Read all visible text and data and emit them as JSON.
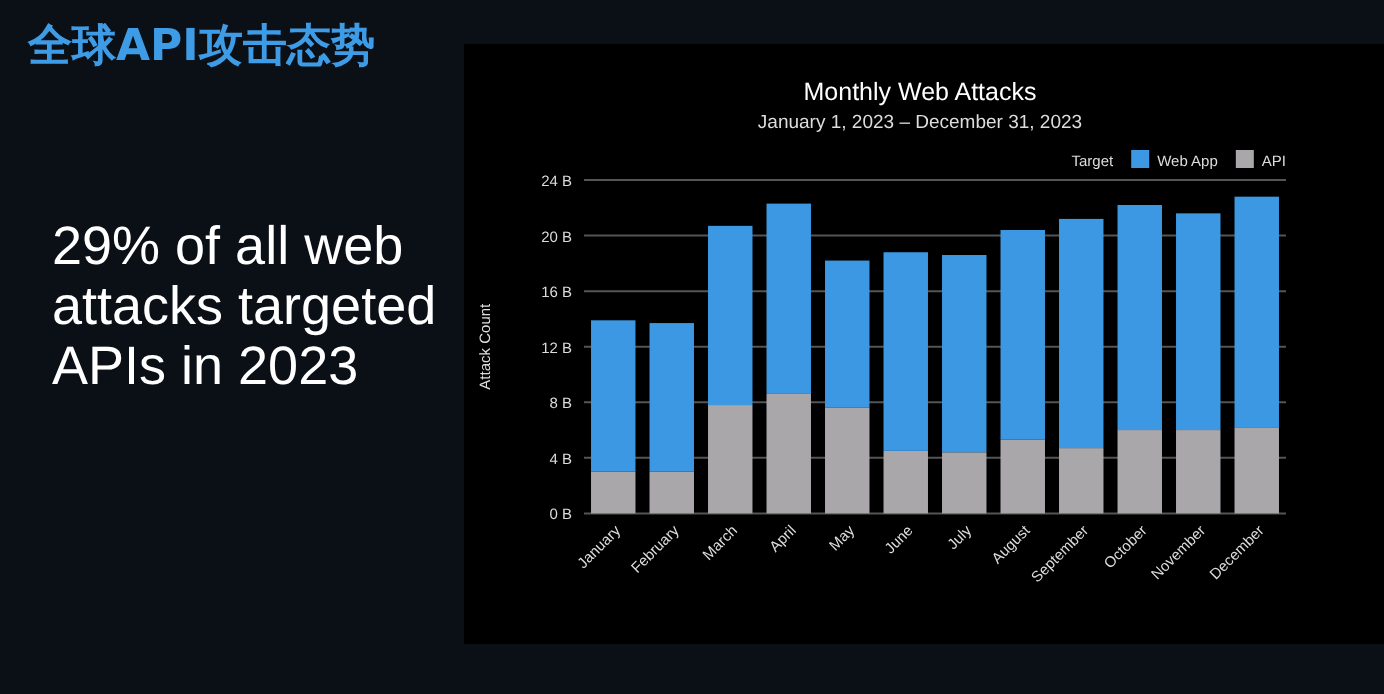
{
  "chart_data": {
    "type": "bar",
    "title": "Monthly Web Attacks",
    "subtitle": "January 1, 2023 – December 31, 2023",
    "ylabel": "Attack Count",
    "legend_title": "Target",
    "annotations": [
      "全球API攻击态势",
      "29% of all web attacks targeted APIs in 2023"
    ],
    "categories": [
      "January",
      "February",
      "March",
      "April",
      "May",
      "June",
      "July",
      "August",
      "September",
      "October",
      "November",
      "December"
    ],
    "stacked": true,
    "series": [
      {
        "name": "API",
        "color": "#a9a7aa",
        "values": [
          3.0,
          3.0,
          7.8,
          8.6,
          7.6,
          4.5,
          4.4,
          5.3,
          4.7,
          6.0,
          6.0,
          6.2
        ]
      },
      {
        "name": "Web App",
        "color": "#3c98e2",
        "values": [
          10.9,
          10.7,
          12.9,
          13.7,
          10.6,
          14.3,
          14.2,
          15.1,
          16.5,
          16.2,
          15.6,
          16.6
        ]
      }
    ],
    "ylim": [
      0,
      24
    ],
    "yticks": [
      {
        "value": 0,
        "label": "0 B"
      },
      {
        "value": 4,
        "label": "4 B"
      },
      {
        "value": 8,
        "label": "8 B"
      },
      {
        "value": 12,
        "label": "12 B"
      },
      {
        "value": 16,
        "label": "16 B"
      },
      {
        "value": 20,
        "label": "20 B"
      },
      {
        "value": 24,
        "label": "24 B"
      }
    ],
    "grid": "y",
    "legend": "top right"
  }
}
